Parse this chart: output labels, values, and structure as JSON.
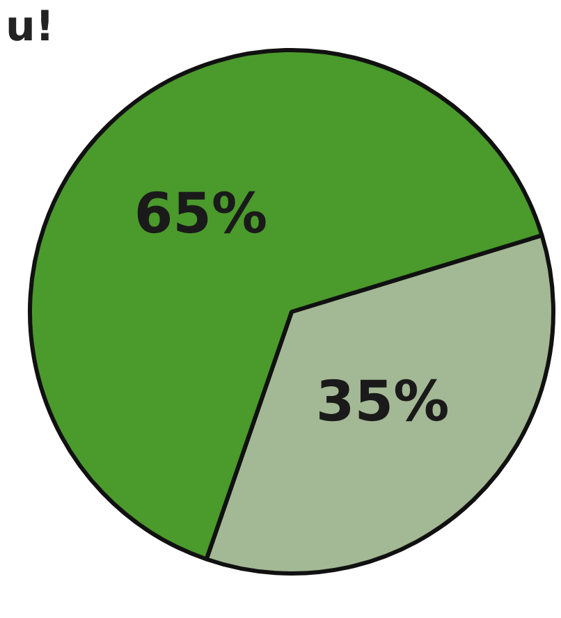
{
  "chart_data": {
    "type": "pie",
    "categories": [
      null,
      null
    ],
    "values": [
      35,
      65
    ],
    "colors": [
      "#a3b894",
      "#4b9a2c"
    ],
    "value_labels": [
      "35%",
      "65%"
    ],
    "annotations": [
      "u!"
    ],
    "legend": false
  }
}
